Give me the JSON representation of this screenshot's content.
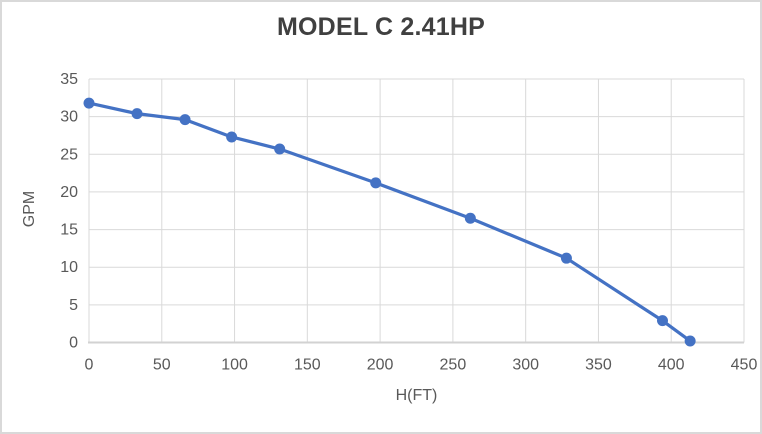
{
  "chart_data": {
    "type": "line",
    "title": "MODEL C 2.41HP",
    "xlabel": "H(FT)",
    "ylabel": "GPM",
    "x": [
      0,
      33,
      66,
      98,
      131,
      197,
      262,
      328,
      394,
      413
    ],
    "y": [
      31.8,
      30.4,
      29.6,
      27.3,
      25.7,
      21.2,
      16.5,
      11.2,
      2.9,
      0.2
    ],
    "xlim": [
      0,
      450
    ],
    "ylim": [
      0,
      35
    ],
    "xticks": [
      0,
      50,
      100,
      150,
      200,
      250,
      300,
      350,
      400,
      450
    ],
    "yticks": [
      0,
      5,
      10,
      15,
      20,
      25,
      30,
      35
    ],
    "grid": true,
    "legend": "none",
    "series_name": "GPM vs H(FT)",
    "series_color": "#4472C4",
    "gridline_color": "#D9D9D9",
    "axis_line_color": "#D2D2D2",
    "tick_label_color": "#595959",
    "title_color": "#404040"
  }
}
